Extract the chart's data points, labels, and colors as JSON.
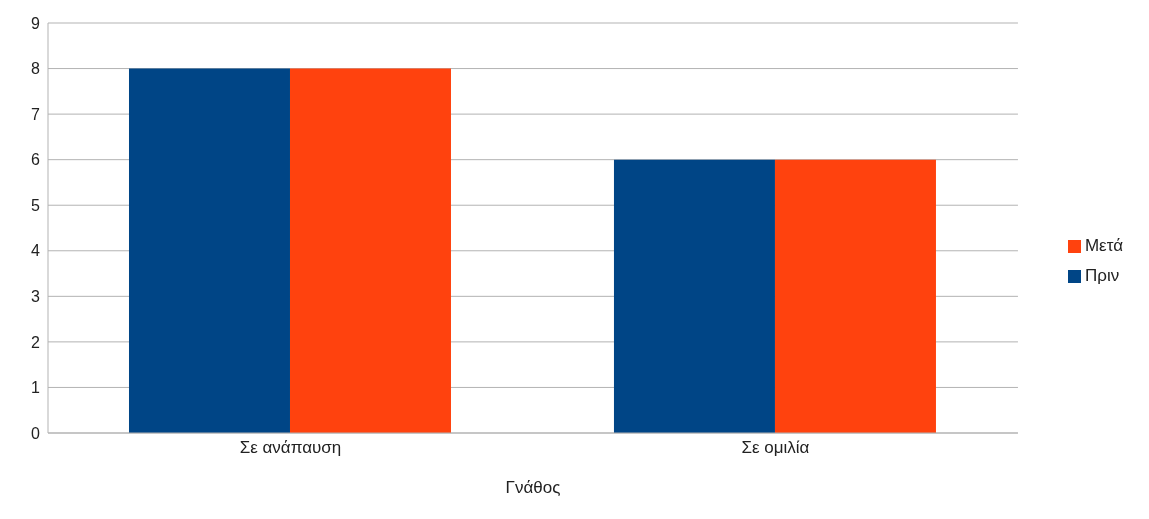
{
  "chart_data": {
    "type": "bar",
    "xlabel": "Γνάθος",
    "categories": [
      "Σε ανάπαυση",
      "Σε ομιλία"
    ],
    "series": [
      {
        "name": "Πριν",
        "color": "#004586",
        "values": [
          8,
          6
        ]
      },
      {
        "name": "Μετά",
        "color": "#ff420e",
        "values": [
          8,
          6
        ]
      }
    ],
    "ylim": [
      0,
      9
    ],
    "yticks": [
      0,
      1,
      2,
      3,
      4,
      5,
      6,
      7,
      8,
      9
    ],
    "grid": "y",
    "legend": "right"
  }
}
